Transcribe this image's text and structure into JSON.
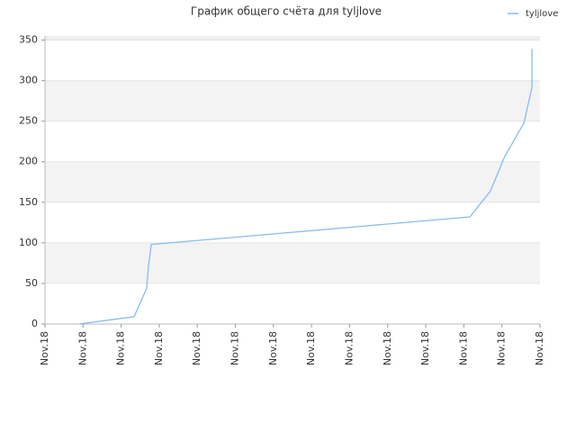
{
  "chart_data": {
    "type": "line",
    "title": "График общего счёта для tyljlove",
    "xlim": [
      0,
      13
    ],
    "xticks": [
      {
        "value": 0,
        "label": "Nov.18"
      },
      {
        "value": 1,
        "label": "Nov.18"
      },
      {
        "value": 2,
        "label": "Nov.18"
      },
      {
        "value": 3,
        "label": "Nov.18"
      },
      {
        "value": 4,
        "label": "Nov.18"
      },
      {
        "value": 5,
        "label": "Nov.18"
      },
      {
        "value": 6,
        "label": "Nov.18"
      },
      {
        "value": 7,
        "label": "Nov.18"
      },
      {
        "value": 8,
        "label": "Nov.18"
      },
      {
        "value": 9,
        "label": "Nov.18"
      },
      {
        "value": 10,
        "label": "Nov.18"
      },
      {
        "value": 11,
        "label": "Nov.18"
      },
      {
        "value": 12,
        "label": "Nov.18"
      },
      {
        "value": 13,
        "label": "Nov.18"
      }
    ],
    "ylim": [
      0,
      355
    ],
    "yticks": [
      0,
      50,
      100,
      150,
      200,
      250,
      300,
      350
    ],
    "x": [
      0.9,
      2.34,
      2.67,
      2.72,
      2.79,
      11.16,
      11.7,
      12.06,
      12.58,
      12.79,
      12.79
    ],
    "series": [
      {
        "name": "tyljlove",
        "color": "#88bbee",
        "values": [
          0,
          9,
          44,
          72,
          98,
          132,
          164,
          205,
          248,
          292,
          339
        ]
      }
    ],
    "grid": true,
    "legend": "top-right"
  }
}
